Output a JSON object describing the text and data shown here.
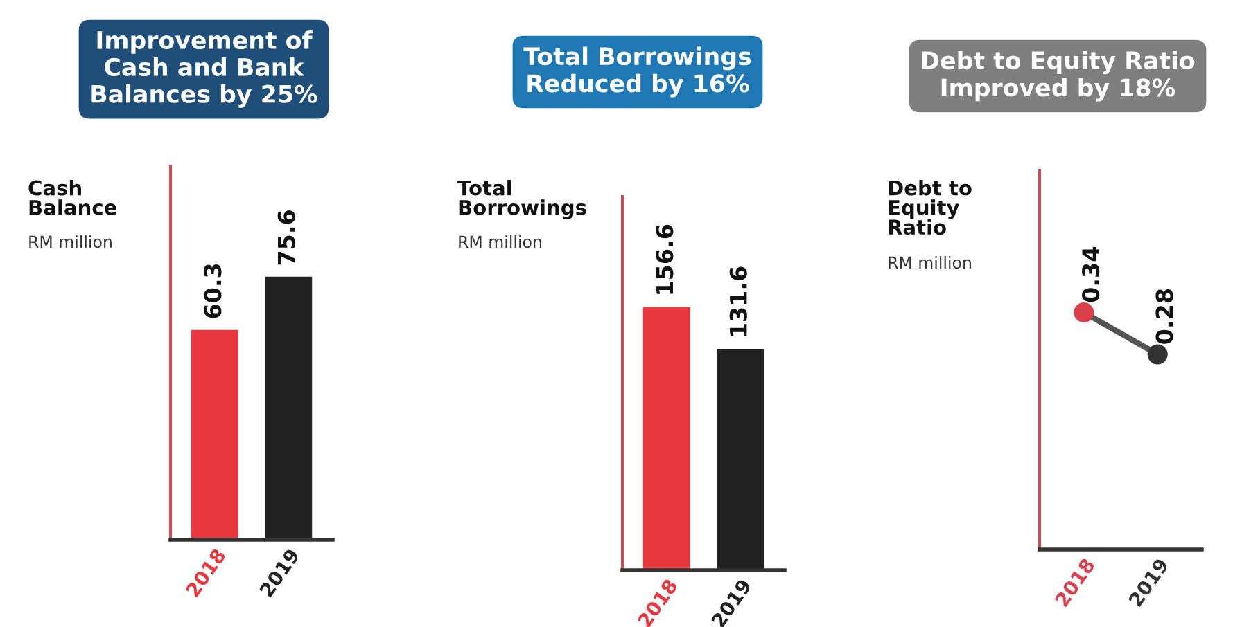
{
  "chart_data": [
    {
      "type": "bar",
      "title": "Improvement of\nCash and Bank\nBalances by 25%",
      "ylabel": "Cash\nBalance",
      "subtitle": "RM million",
      "categories": [
        "2018",
        "2019"
      ],
      "values": [
        60.3,
        75.6
      ],
      "colors": [
        "#e8383d",
        "#222222"
      ],
      "data_labels": true
    },
    {
      "type": "bar",
      "title": "Total Borrowings\nReduced by 16%",
      "ylabel": "Total\nBorrowings",
      "subtitle": "RM million",
      "categories": [
        "2018",
        "2019"
      ],
      "values": [
        156.6,
        131.6
      ],
      "colors": [
        "#e8383d",
        "#222222"
      ],
      "data_labels": true
    },
    {
      "type": "line",
      "title": "Debt to Equity Ratio\nImproved by 18%",
      "ylabel": "Debt to\nEquity\nRatio",
      "subtitle": "RM million",
      "categories": [
        "2018",
        "2019"
      ],
      "values": [
        0.34,
        0.28
      ],
      "colors": [
        "#d9404a",
        "#333333"
      ],
      "color": "#555555",
      "marker": "circle",
      "data_labels": true
    }
  ]
}
